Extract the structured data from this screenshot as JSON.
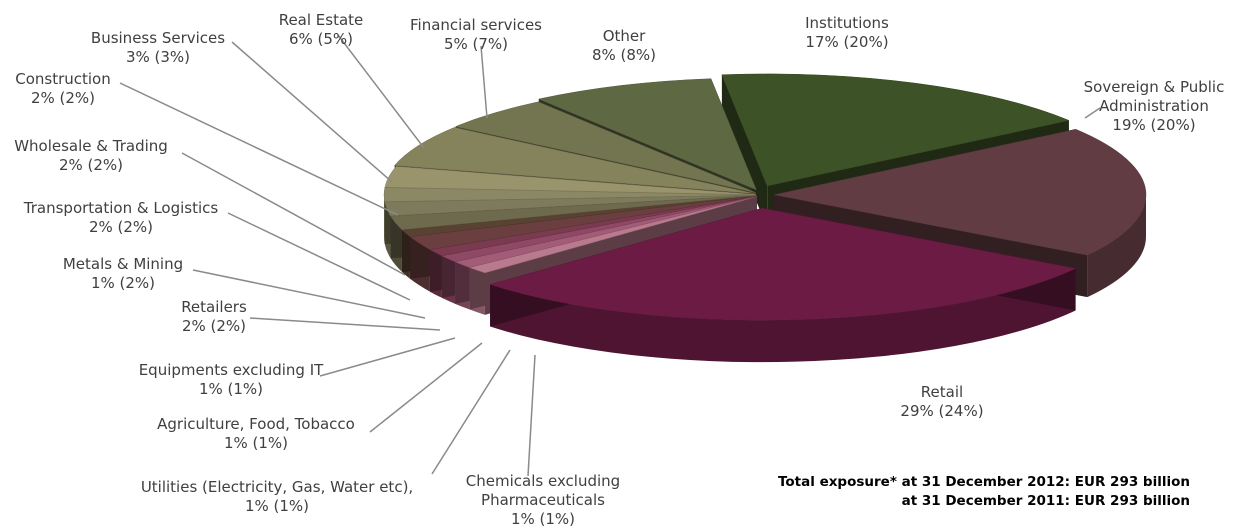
{
  "chart_data": {
    "type": "pie",
    "style": "3d-exploded",
    "categories": [
      "Institutions",
      "Sovereign & Public Administration",
      "Retail",
      "Chemicals excluding Pharmaceuticals",
      "Utilities (Electricity, Gas, Water etc),",
      "Agriculture, Food, Tobacco",
      "Equipments excluding IT",
      "Retailers",
      "Metals & Mining",
      "Transportation & Logistics",
      "Wholesale & Trading",
      "Construction",
      "Business Services",
      "Real Estate",
      "Financial services",
      "Other"
    ],
    "series": [
      {
        "name": "31 December 2012",
        "values": [
          17,
          19,
          29,
          1,
          1,
          1,
          1,
          2,
          1,
          2,
          2,
          2,
          3,
          6,
          5,
          8
        ],
        "unit": "%"
      },
      {
        "name": "31 December 2011",
        "values": [
          20,
          20,
          24,
          1,
          1,
          1,
          1,
          2,
          2,
          2,
          2,
          2,
          3,
          5,
          7,
          8
        ],
        "unit": "%"
      }
    ],
    "labels": [
      {
        "name": "Institutions",
        "value": "17% (20%)"
      },
      {
        "name": "Sovereign & Public Administration",
        "value": "19% (20%)"
      },
      {
        "name": "Retail",
        "value": "29% (24%)"
      },
      {
        "name": "Chemicals excluding Pharmaceuticals",
        "value": "1% (1%)"
      },
      {
        "name": "Utilities (Electricity, Gas, Water etc),",
        "value": "1% (1%)"
      },
      {
        "name": "Agriculture, Food, Tobacco",
        "value": "1% (1%)"
      },
      {
        "name": "Equipments excluding IT",
        "value": "1% (1%)"
      },
      {
        "name": "Retailers",
        "value": "2% (2%)"
      },
      {
        "name": "Metals & Mining",
        "value": "1% (2%)"
      },
      {
        "name": "Transportation & Logistics",
        "value": "2% (2%)"
      },
      {
        "name": "Wholesale & Trading",
        "value": "2% (2%)"
      },
      {
        "name": "Construction",
        "value": "2% (2%)"
      },
      {
        "name": "Business Services",
        "value": "3% (3%)"
      },
      {
        "name": "Real Estate",
        "value": "6% (5%)"
      },
      {
        "name": "Financial services",
        "value": "5% (7%)"
      },
      {
        "name": "Other",
        "value": "8% (8%)"
      }
    ],
    "colors": [
      "#3d5226",
      "#613d43",
      "#6c1c44",
      "#b87a8c",
      "#a35c78",
      "#8f4964",
      "#7a3a50",
      "#6b3f3f",
      "#5a4233",
      "#6e6a4e",
      "#7e7a5c",
      "#8c8866",
      "#9a946c",
      "#85835c",
      "#737550",
      "#5e6843"
    ],
    "legend": "none"
  },
  "note": {
    "line1": "Total exposure* at 31 December 2012: EUR 293 billion",
    "line2": "at 31 December 2011: EUR 293 billion"
  }
}
